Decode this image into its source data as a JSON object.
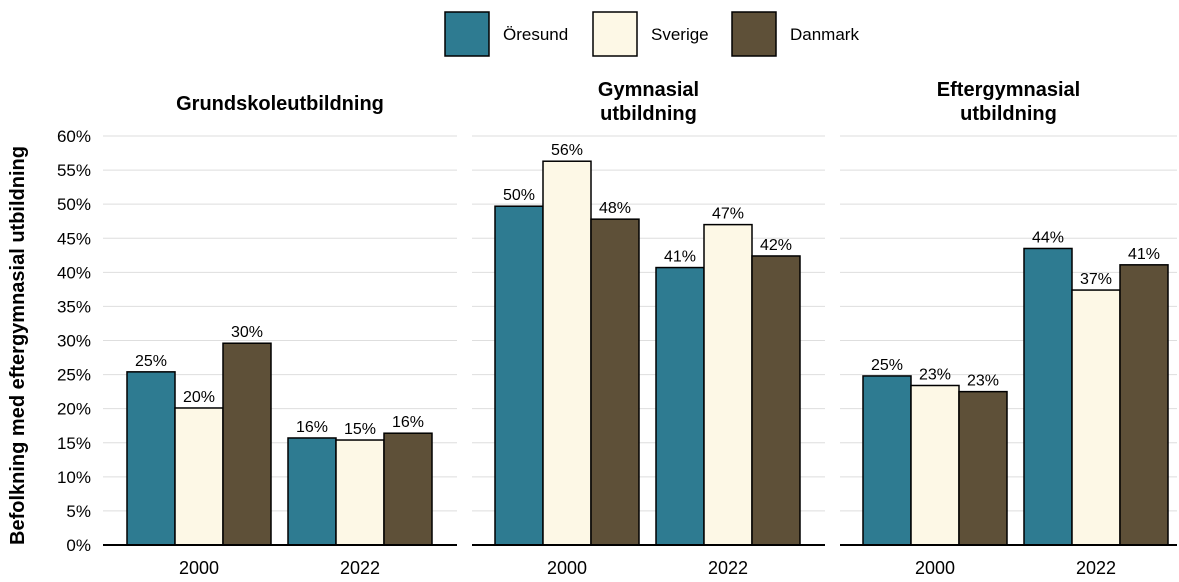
{
  "chart_data": {
    "type": "bar",
    "ylabel": "Befolkning med eftergymnasial utbildning",
    "ylim": [
      0,
      0.6
    ],
    "yticks": [
      "0%",
      "5%",
      "10%",
      "15%",
      "20%",
      "25%",
      "30%",
      "35%",
      "40%",
      "45%",
      "50%",
      "55%",
      "60%"
    ],
    "grid": "horizontal",
    "legend_position": "top-center",
    "series_meta": [
      {
        "name": "Öresund",
        "color": "#2e7b91"
      },
      {
        "name": "Sverige",
        "color": "#fdf8e6"
      },
      {
        "name": "Danmark",
        "color": "#5e5038"
      }
    ],
    "panels": [
      {
        "title": "Grundskoleutbildning",
        "categories": [
          "2000",
          "2022"
        ],
        "series": [
          {
            "name": "Öresund",
            "values": [
              0.254,
              0.157
            ]
          },
          {
            "name": "Sverige",
            "values": [
              0.201,
              0.154
            ]
          },
          {
            "name": "Danmark",
            "values": [
              0.296,
              0.164
            ]
          }
        ],
        "labels": [
          [
            "25%",
            "16%"
          ],
          [
            "20%",
            "15%"
          ],
          [
            "30%",
            "16%"
          ]
        ]
      },
      {
        "title": "Gymnasial\nutbildning",
        "categories": [
          "2000",
          "2022"
        ],
        "series": [
          {
            "name": "Öresund",
            "values": [
              0.497,
              0.407
            ]
          },
          {
            "name": "Sverige",
            "values": [
              0.563,
              0.47
            ]
          },
          {
            "name": "Danmark",
            "values": [
              0.478,
              0.424
            ]
          }
        ],
        "labels": [
          [
            "50%",
            "41%"
          ],
          [
            "56%",
            "47%"
          ],
          [
            "48%",
            "42%"
          ]
        ]
      },
      {
        "title": "Eftergymnasial\nutbildning",
        "categories": [
          "2000",
          "2022"
        ],
        "series": [
          {
            "name": "Öresund",
            "values": [
              0.248,
              0.435
            ]
          },
          {
            "name": "Sverige",
            "values": [
              0.234,
              0.374
            ]
          },
          {
            "name": "Danmark",
            "values": [
              0.225,
              0.411
            ]
          }
        ],
        "labels": [
          [
            "25%",
            "44%"
          ],
          [
            "23%",
            "37%"
          ],
          [
            "23%",
            "41%"
          ]
        ]
      }
    ]
  }
}
